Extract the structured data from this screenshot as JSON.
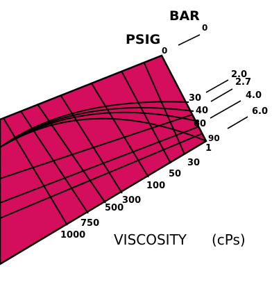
{
  "diagram": {
    "colors": {
      "panel_fill": "#d40d5c",
      "line": "#000000",
      "background": "#ffffff"
    },
    "psig_title": "PSIG",
    "bar_title": "BAR",
    "psig_ticks": [
      "0",
      "30",
      "40",
      "60",
      "90"
    ],
    "bar_ticks": [
      "0",
      "2.0",
      "2.7",
      "4.0",
      "6.0"
    ],
    "viscosity_ticks": [
      "1",
      "30",
      "50",
      "100",
      "300",
      "500",
      "750",
      "1000"
    ],
    "viscosity_title": "VISCOSITY",
    "viscosity_unit": "(cPs)"
  }
}
